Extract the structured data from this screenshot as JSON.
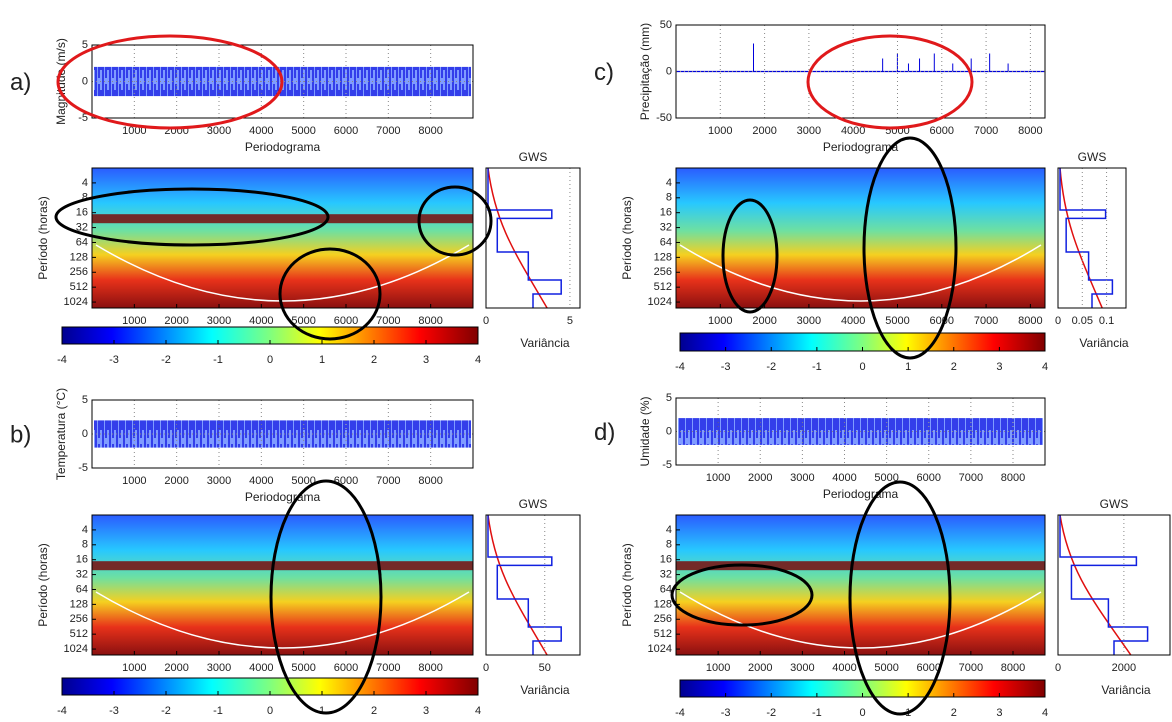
{
  "chart_data": [
    {
      "type": "line",
      "panel_label": "a)",
      "ylabel": "Magnitude (m/s)",
      "xlabel": "Periodograma",
      "xlim": [
        0,
        9000
      ],
      "xticks": [
        1000,
        2000,
        3000,
        4000,
        5000,
        6000,
        7000,
        8000
      ],
      "ylim": [
        -5,
        5
      ],
      "yticks": [
        -5,
        0,
        5
      ],
      "grid": true
    },
    {
      "type": "heatmap",
      "ylabel": "Período (horas)",
      "yscale": "log2",
      "ylim": [
        2,
        1350
      ],
      "yticks": [
        4,
        8,
        16,
        32,
        64,
        128,
        256,
        512,
        1024
      ],
      "xlim": [
        0,
        9000
      ],
      "xticks": [
        1000,
        2000,
        3000,
        4000,
        5000,
        6000,
        7000,
        8000
      ]
    },
    {
      "type": "gws",
      "title": "GWS",
      "xlabel": "Variância",
      "xlim": [
        0,
        5.6
      ],
      "xticks": [
        0,
        5
      ],
      "yscale": "log2",
      "ylim": [
        2,
        1350
      ],
      "grid": true
    },
    {
      "type": "colorbar",
      "xlim": [
        -4,
        4
      ],
      "xticks": [
        -4,
        -3,
        -2,
        -1,
        0,
        1,
        2,
        3,
        4
      ]
    },
    {
      "type": "line",
      "panel_label": "b)",
      "ylabel": "Temperatura (°C)",
      "xlabel": "Periodograma",
      "xlim": [
        0,
        9000
      ],
      "xticks": [
        1000,
        2000,
        3000,
        4000,
        5000,
        6000,
        7000,
        8000
      ],
      "ylim": [
        -5,
        5
      ],
      "yticks": [
        -5,
        0,
        5
      ],
      "grid": true
    },
    {
      "type": "heatmap",
      "ylabel": "Período (horas)",
      "yscale": "log2",
      "ylim": [
        2,
        1350
      ],
      "yticks": [
        4,
        8,
        16,
        32,
        64,
        128,
        256,
        512,
        1024
      ],
      "xlim": [
        0,
        9000
      ],
      "xticks": [
        1000,
        2000,
        3000,
        4000,
        5000,
        6000,
        7000,
        8000
      ]
    },
    {
      "type": "gws",
      "title": "GWS",
      "xlabel": "Variância",
      "xlim": [
        0,
        80
      ],
      "xticks": [
        0,
        50
      ],
      "yscale": "log2",
      "ylim": [
        2,
        1350
      ],
      "grid": true
    },
    {
      "type": "colorbar",
      "xlim": [
        -4,
        4
      ],
      "xticks": [
        -4,
        -3,
        -2,
        -1,
        0,
        1,
        2,
        3,
        4
      ]
    },
    {
      "type": "line",
      "panel_label": "c)",
      "ylabel": "Precipitação (mm)",
      "xlabel": "Periodograma",
      "xlim": [
        0,
        8330
      ],
      "xticks": [
        1000,
        2000,
        3000,
        4000,
        5000,
        6000,
        7000,
        8000
      ],
      "ylim": [
        -50,
        50
      ],
      "yticks": [
        -50,
        0,
        50
      ],
      "grid": true
    },
    {
      "type": "heatmap",
      "ylabel": "Período (horas)",
      "yscale": "log2",
      "ylim": [
        2,
        1350
      ],
      "yticks": [
        4,
        8,
        16,
        32,
        64,
        128,
        256,
        512,
        1024
      ],
      "xlim": [
        0,
        8330
      ],
      "xticks": [
        1000,
        2000,
        3000,
        4000,
        5000,
        6000,
        7000,
        8000
      ]
    },
    {
      "type": "gws",
      "title": "GWS",
      "xlabel": "Variância",
      "xlim": [
        0,
        0.14
      ],
      "xticks": [
        0,
        0.05,
        0.1
      ],
      "yscale": "log2",
      "ylim": [
        2,
        1350
      ],
      "grid": true
    },
    {
      "type": "colorbar",
      "xlim": [
        -4,
        4
      ],
      "xticks": [
        -4,
        -3,
        -2,
        -1,
        0,
        1,
        2,
        3,
        4
      ]
    },
    {
      "type": "line",
      "panel_label": "d)",
      "ylabel": "Umidade (%)",
      "xlabel": "Periodograma",
      "xlim": [
        0,
        8760
      ],
      "xticks": [
        1000,
        2000,
        3000,
        4000,
        5000,
        6000,
        7000,
        8000
      ],
      "ylim": [
        -5,
        5
      ],
      "yticks": [
        -5,
        0,
        5
      ],
      "grid": true
    },
    {
      "type": "heatmap",
      "ylabel": "Período (horas)",
      "yscale": "log2",
      "ylim": [
        2,
        1350
      ],
      "yticks": [
        4,
        8,
        16,
        32,
        64,
        128,
        256,
        512,
        1024
      ],
      "xlim": [
        0,
        8760
      ],
      "xticks": [
        1000,
        2000,
        3000,
        4000,
        5000,
        6000,
        7000,
        8000
      ]
    },
    {
      "type": "gws",
      "title": "GWS",
      "xlabel": "Variância",
      "xlim": [
        0,
        3400
      ],
      "xticks": [
        0,
        2000
      ],
      "yscale": "log2",
      "ylim": [
        2,
        1350
      ],
      "grid": true
    },
    {
      "type": "colorbar",
      "xlim": [
        -4,
        4
      ],
      "xticks": [
        -4,
        -3,
        -2,
        -1,
        0,
        1,
        2,
        3,
        4
      ]
    }
  ]
}
